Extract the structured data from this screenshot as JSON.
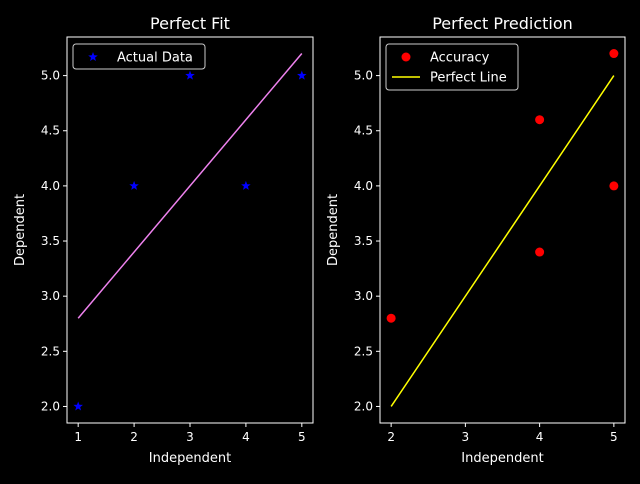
{
  "colors": {
    "background": "#000000",
    "foreground": "#ffffff",
    "series_blue": "#0000ff",
    "series_pink": "#ee82ee",
    "series_red": "#ff0000",
    "series_yellow": "#ffff00"
  },
  "chart_data": [
    {
      "type": "scatter",
      "title": "Perfect Fit",
      "xlabel": "Independent",
      "ylabel": "Dependent",
      "xlim": [
        0.8,
        5.2
      ],
      "ylim": [
        1.85,
        5.35
      ],
      "xticks": [
        1,
        2,
        3,
        4,
        5
      ],
      "xtick_labels": [
        "1",
        "2",
        "3",
        "4",
        "5"
      ],
      "yticks": [
        2.0,
        2.5,
        3.0,
        3.5,
        4.0,
        4.5,
        5.0
      ],
      "ytick_labels": [
        "2.0",
        "2.5",
        "3.0",
        "3.5",
        "4.0",
        "4.5",
        "5.0"
      ],
      "grid": false,
      "legend": {
        "placement": "upper-left"
      },
      "series": [
        {
          "name": "Actual Data",
          "kind": "scatter",
          "marker": "star",
          "color": "#0000ff",
          "x": [
            1,
            2,
            3,
            4,
            5
          ],
          "y": [
            2.0,
            4.0,
            5.0,
            4.0,
            5.0
          ]
        },
        {
          "kind": "line",
          "color": "#ee82ee",
          "x": [
            1,
            5
          ],
          "y": [
            2.8,
            5.2
          ]
        }
      ]
    },
    {
      "type": "scatter",
      "title": "Perfect Prediction",
      "xlabel": "Independent",
      "ylabel": "Dependent",
      "xlim": [
        1.85,
        5.15
      ],
      "ylim": [
        1.85,
        5.35
      ],
      "xticks": [
        2,
        3,
        4,
        5
      ],
      "xtick_labels": [
        "2",
        "3",
        "4",
        "5"
      ],
      "yticks": [
        2.0,
        2.5,
        3.0,
        3.5,
        4.0,
        4.5,
        5.0
      ],
      "ytick_labels": [
        "2.0",
        "2.5",
        "3.0",
        "3.5",
        "4.0",
        "4.5",
        "5.0"
      ],
      "grid": false,
      "legend": {
        "placement": "upper-left"
      },
      "series": [
        {
          "name": "Accuracy",
          "kind": "scatter",
          "marker": "circle",
          "color": "#ff0000",
          "x": [
            2,
            4,
            4,
            5,
            5
          ],
          "y": [
            2.8,
            4.6,
            3.4,
            5.2,
            4.0
          ]
        },
        {
          "name": "Perfect Line",
          "kind": "line",
          "color": "#ffff00",
          "x": [
            2,
            5
          ],
          "y": [
            2.0,
            5.0
          ]
        }
      ]
    }
  ]
}
